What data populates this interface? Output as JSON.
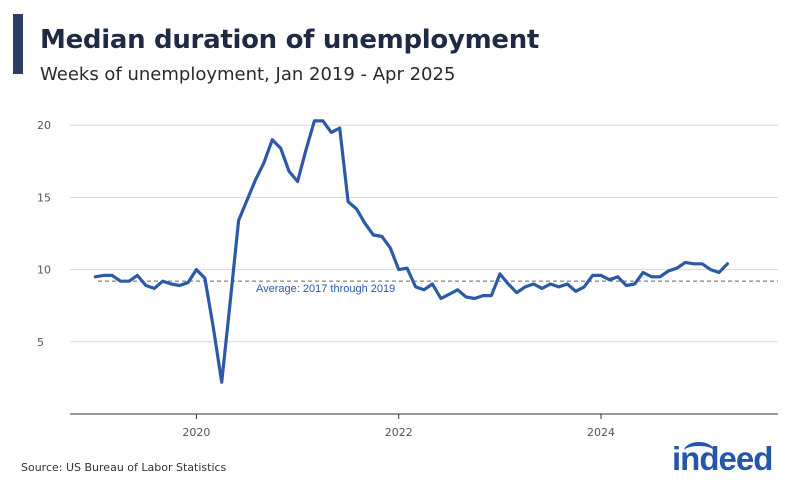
{
  "header": {
    "title": "Median duration of unemployment",
    "subtitle": "Weeks of unemployment, Jan 2019 - Apr 2025"
  },
  "footer": {
    "source": "Source: US Bureau of Labor Statistics",
    "logo_text": "indeed",
    "logo_name": "indeed-logo"
  },
  "colors": {
    "line": "#2d5aa6",
    "accent": "#2c3e63",
    "grid": "#d9d9d9",
    "avg_line": "#666666"
  },
  "chart_data": {
    "type": "line",
    "title": "Median duration of unemployment",
    "subtitle": "Weeks of unemployment, Jan 2019 - Apr 2025",
    "xlabel": "",
    "ylabel": "",
    "x_start": "2019-01",
    "x_range": [
      "2018-10",
      "2025-10"
    ],
    "ylim": [
      0,
      20
    ],
    "yticks": [
      5,
      10,
      15,
      20
    ],
    "xticks": [
      {
        "label": "2020",
        "x": "2020-01"
      },
      {
        "label": "2022",
        "x": "2022-01"
      },
      {
        "label": "2024",
        "x": "2024-01"
      }
    ],
    "grid": true,
    "series": [
      {
        "values": [
          9.5,
          9.6,
          9.6,
          9.2,
          9.2,
          9.6,
          8.9,
          8.7,
          9.2,
          9.0,
          8.9,
          9.1,
          10.0,
          9.4,
          6.0,
          2.2,
          7.7,
          13.4,
          14.8,
          16.2,
          17.4,
          19.0,
          18.4,
          16.8,
          16.1,
          18.3,
          20.3,
          20.3,
          19.5,
          19.8,
          14.7,
          14.2,
          13.2,
          12.4,
          12.3,
          11.5,
          10.0,
          10.1,
          8.8,
          8.6,
          9.0,
          8.0,
          8.3,
          8.6,
          8.1,
          8.0,
          8.2,
          8.2,
          9.7,
          9.0,
          8.4,
          8.8,
          9.0,
          8.7,
          9.0,
          8.8,
          9.0,
          8.5,
          8.8,
          9.6,
          9.6,
          9.3,
          9.5,
          8.9,
          9.0,
          9.8,
          9.5,
          9.5,
          9.9,
          10.1,
          10.5,
          10.4,
          10.4,
          10.0,
          9.8,
          10.4
        ]
      }
    ],
    "reference_line": {
      "value": 9.2,
      "label": "Average: 2017 through 2019"
    }
  }
}
